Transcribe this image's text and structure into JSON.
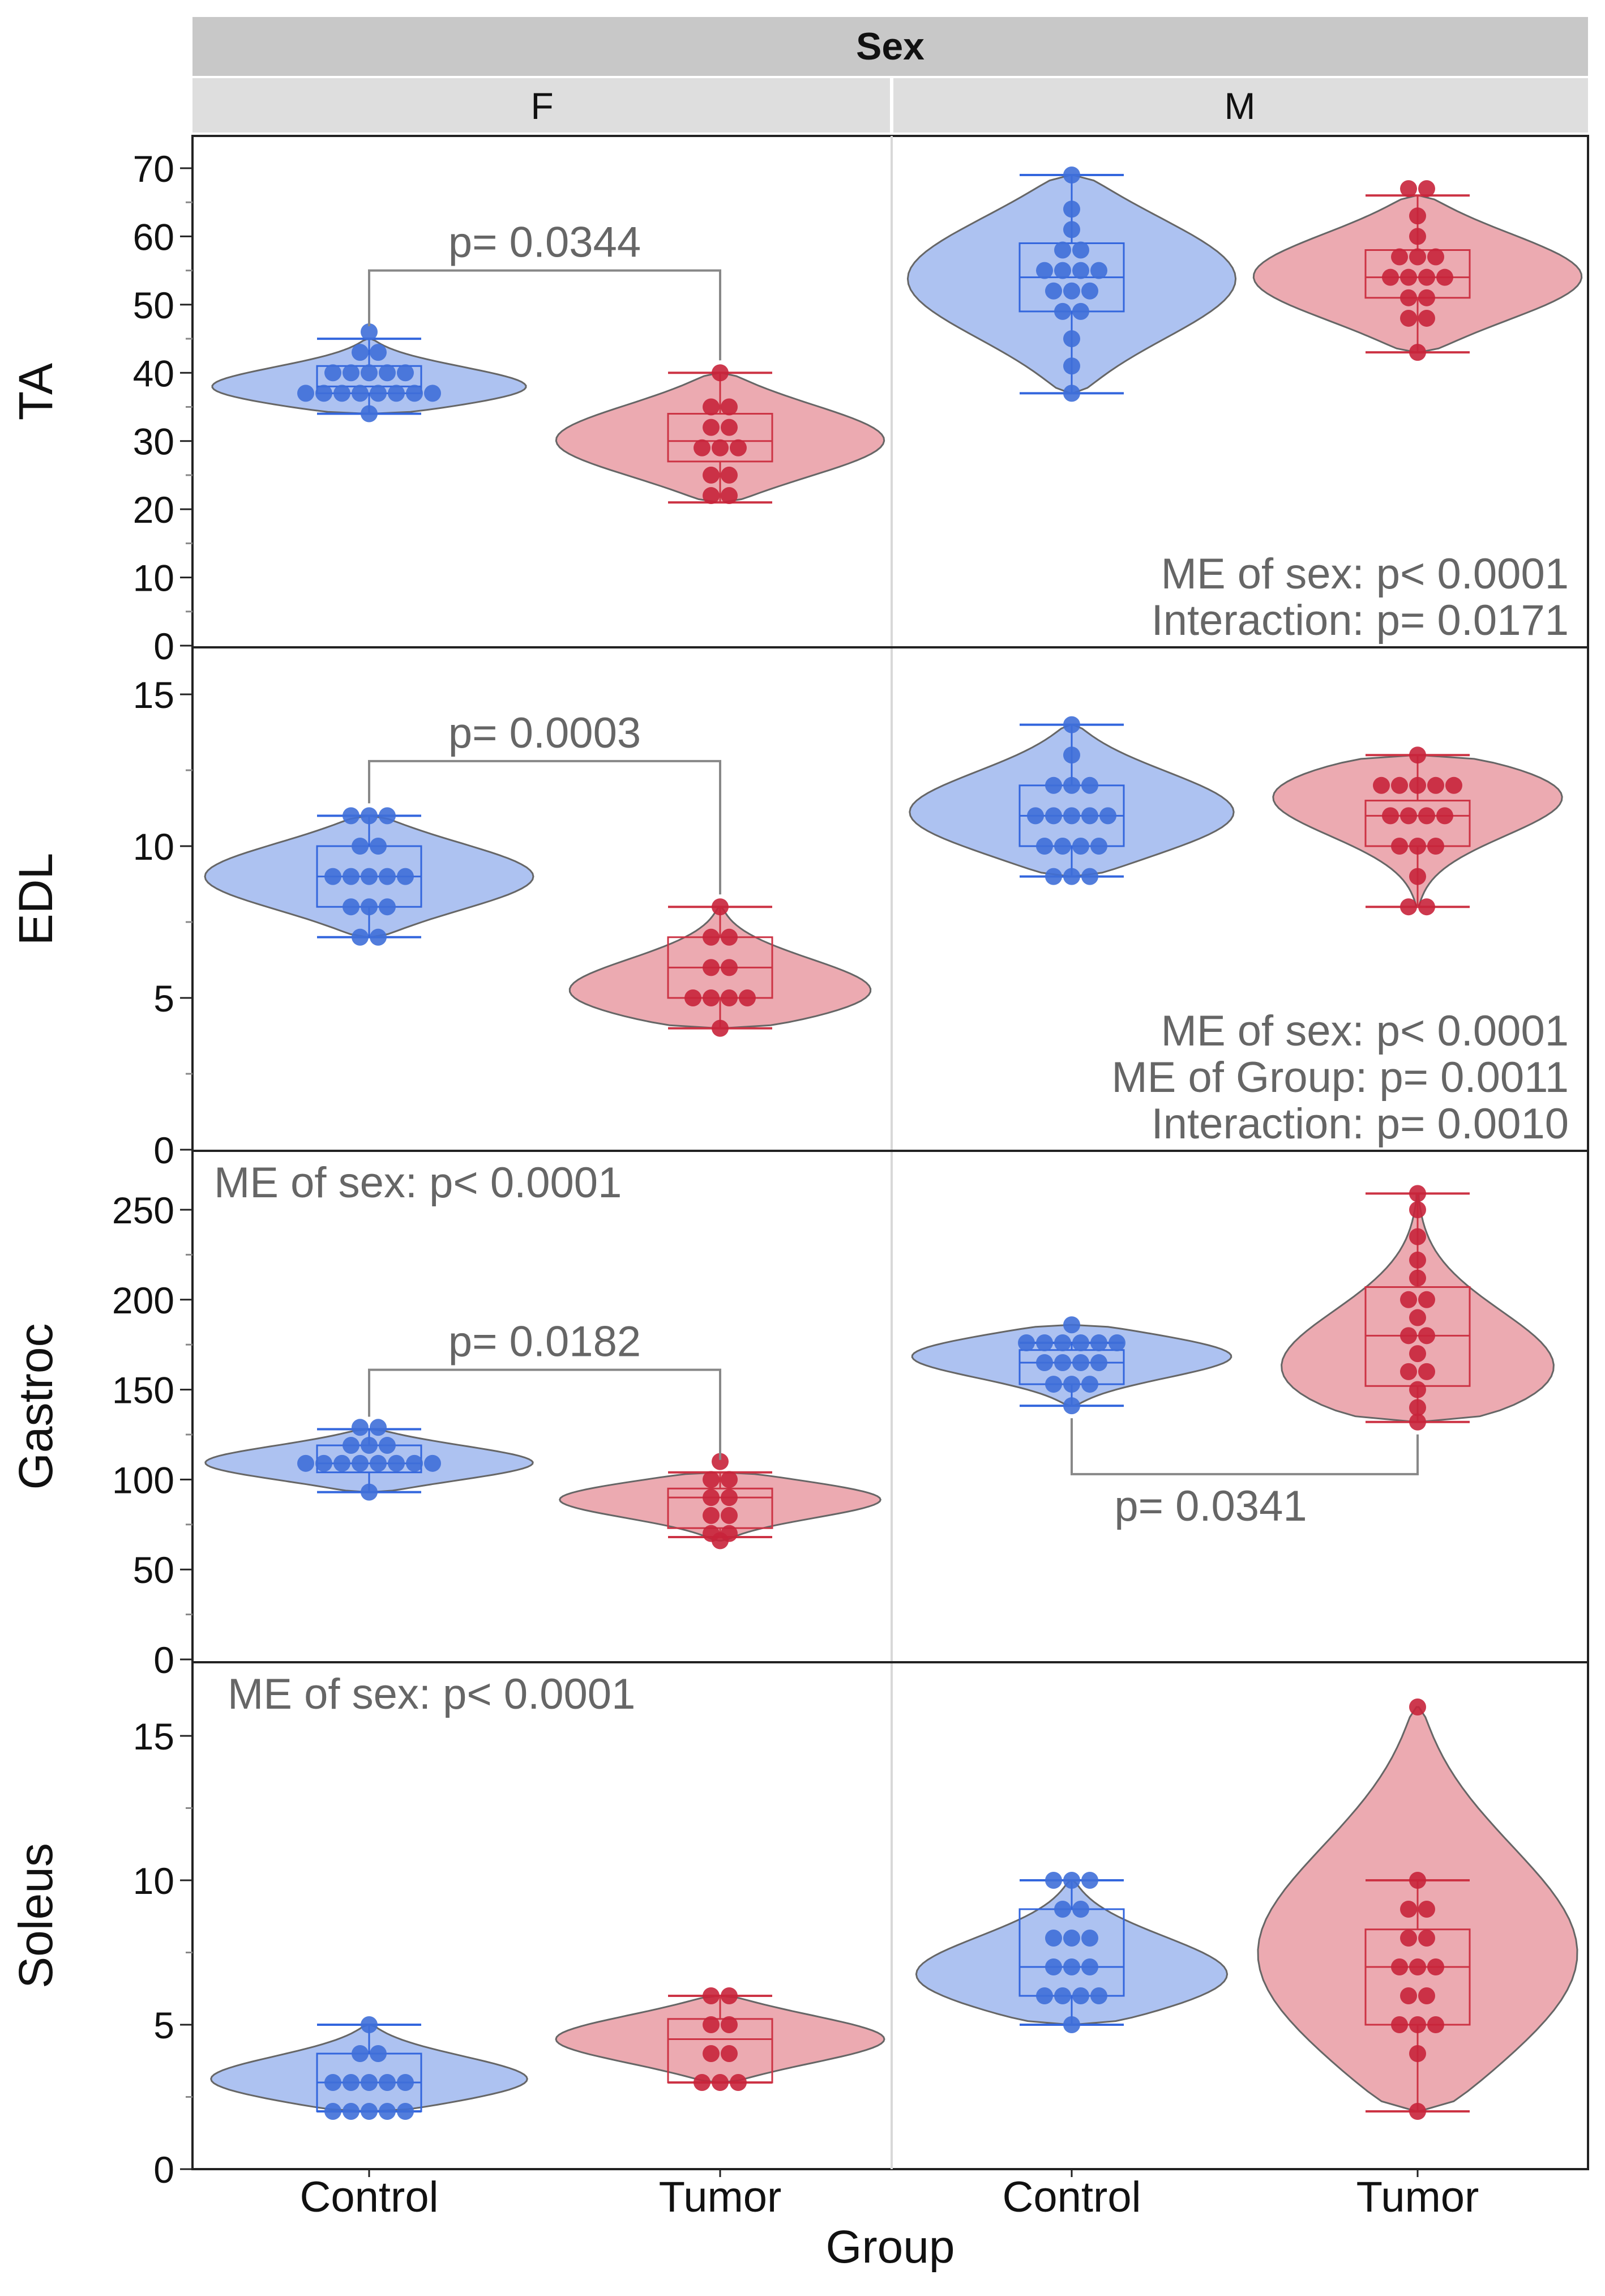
{
  "facet": {
    "title": "Sex",
    "columns": [
      "F",
      "M"
    ]
  },
  "xlabel": "Group",
  "groups": [
    "Control",
    "Tumor"
  ],
  "colors": {
    "Control": {
      "fill": "#a9bff0",
      "point": "#3f6fd8",
      "line": "#3366dd"
    },
    "Tumor": {
      "fill": "#eba5ad",
      "point": "#c8243b",
      "line": "#cc3344"
    },
    "header_dark": "#c8c8c8",
    "header_light": "#dedede",
    "annotation": "#666666"
  },
  "chart_data": [
    {
      "type": "violin",
      "ylabel": "TA",
      "ylim": [
        0,
        70
      ],
      "yticks": [
        0,
        10,
        20,
        30,
        40,
        50,
        60,
        70
      ],
      "grid": false,
      "panels": {
        "F": {
          "Control": {
            "box": {
              "min": 34,
              "q1": 37,
              "median": 38,
              "q3": 41,
              "max": 45
            },
            "points": [
              46,
              43,
              43,
              40,
              40,
              40,
              40,
              40,
              37,
              37,
              37,
              37,
              37,
              37,
              37,
              37,
              34
            ],
            "violin": {
              "ymin": 34,
              "ymax": 45,
              "widest_at": 37.5
            }
          },
          "Tumor": {
            "box": {
              "min": 21,
              "q1": 27,
              "median": 30,
              "q3": 34,
              "max": 40
            },
            "points": [
              40,
              35,
              35,
              32,
              32,
              29,
              29,
              29,
              25,
              25,
              22,
              22
            ],
            "violin": {
              "ymin": 21,
              "ymax": 40,
              "widest_at": 30
            }
          }
        },
        "M": {
          "Control": {
            "box": {
              "min": 37,
              "q1": 49,
              "median": 54,
              "q3": 59,
              "max": 69
            },
            "points": [
              69,
              64,
              61,
              58,
              58,
              55,
              55,
              55,
              55,
              52,
              52,
              52,
              49,
              49,
              45,
              41,
              37
            ],
            "violin": {
              "ymin": 37,
              "ymax": 69,
              "widest_at": 54
            }
          },
          "Tumor": {
            "box": {
              "min": 43,
              "q1": 51,
              "median": 54,
              "q3": 58,
              "max": 66
            },
            "points": [
              67,
              67,
              63,
              60,
              57,
              57,
              57,
              54,
              54,
              54,
              54,
              51,
              51,
              48,
              48,
              43
            ],
            "violin": {
              "ymin": 43,
              "ymax": 66,
              "widest_at": 54
            }
          }
        }
      },
      "annotations": [
        {
          "facet": "F",
          "text": "p= 0.0344",
          "type": "bracket",
          "from": "Control",
          "to": "Tumor",
          "y": 55
        },
        {
          "facet": "M",
          "text": "ME of sex: p< 0.0001",
          "type": "note",
          "placement": "bottom-right"
        },
        {
          "facet": "M",
          "text": "Interaction: p= 0.0171",
          "type": "note",
          "placement": "bottom-right"
        }
      ]
    },
    {
      "type": "violin",
      "ylabel": "EDL",
      "ylim": [
        0,
        15
      ],
      "yticks": [
        0,
        5,
        10,
        15
      ],
      "grid": false,
      "panels": {
        "F": {
          "Control": {
            "box": {
              "min": 7,
              "q1": 8,
              "median": 9,
              "q3": 10,
              "max": 11
            },
            "points": [
              11,
              11,
              11,
              10,
              10,
              9,
              9,
              9,
              9,
              9,
              8,
              8,
              8,
              7,
              7
            ],
            "violin": {
              "ymin": 7,
              "ymax": 11,
              "widest_at": 9
            }
          },
          "Tumor": {
            "box": {
              "min": 4,
              "q1": 5,
              "median": 6,
              "q3": 7,
              "max": 8
            },
            "points": [
              8,
              7,
              7,
              6,
              6,
              5,
              5,
              5,
              5,
              4
            ],
            "violin": {
              "ymin": 4,
              "ymax": 8,
              "widest_at": 5
            }
          }
        },
        "M": {
          "Control": {
            "box": {
              "min": 9,
              "q1": 10,
              "median": 11,
              "q3": 12,
              "max": 14
            },
            "points": [
              14,
              13,
              12,
              12,
              12,
              11,
              11,
              11,
              11,
              11,
              10,
              10,
              10,
              10,
              9,
              9,
              9
            ],
            "violin": {
              "ymin": 9,
              "ymax": 14,
              "widest_at": 11
            }
          },
          "Tumor": {
            "box": {
              "min": 8,
              "q1": 10,
              "median": 11,
              "q3": 11.5,
              "max": 13
            },
            "points": [
              13,
              12,
              12,
              12,
              12,
              12,
              11,
              11,
              11,
              11,
              10,
              10,
              10,
              9,
              8,
              8
            ],
            "violin": {
              "ymin": 8,
              "ymax": 13,
              "widest_at": 12
            }
          }
        }
      },
      "annotations": [
        {
          "facet": "F",
          "text": "p= 0.0003",
          "type": "bracket",
          "from": "Control",
          "to": "Tumor",
          "y": 12.8
        },
        {
          "facet": "M",
          "text": "ME of sex: p< 0.0001",
          "type": "note",
          "placement": "bottom-right"
        },
        {
          "facet": "M",
          "text": "ME of Group: p= 0.0011",
          "type": "note",
          "placement": "bottom-right"
        },
        {
          "facet": "M",
          "text": "Interaction: p= 0.0010",
          "type": "note",
          "placement": "bottom-right"
        }
      ]
    },
    {
      "type": "violin",
      "ylabel": "Gastroc",
      "ylim": [
        0,
        250
      ],
      "yticks": [
        0,
        50,
        100,
        150,
        200,
        250
      ],
      "grid": false,
      "panels": {
        "F": {
          "Control": {
            "box": {
              "min": 93,
              "q1": 104,
              "median": 109,
              "q3": 119,
              "max": 128
            },
            "points": [
              129,
              129,
              119,
              119,
              119,
              109,
              109,
              109,
              109,
              109,
              109,
              109,
              109,
              93
            ],
            "violin": {
              "ymin": 93,
              "ymax": 128,
              "widest_at": 109
            }
          },
          "Tumor": {
            "box": {
              "min": 68,
              "q1": 73,
              "median": 90,
              "q3": 95,
              "max": 104
            },
            "points": [
              110,
              100,
              100,
              90,
              90,
              80,
              80,
              70,
              70,
              66
            ],
            "violin": {
              "ymin": 66,
              "ymax": 104,
              "widest_at": 90
            }
          }
        },
        "M": {
          "Control": {
            "box": {
              "min": 141,
              "q1": 153,
              "median": 165,
              "q3": 172,
              "max": 176
            },
            "points": [
              186,
              176,
              176,
              176,
              176,
              176,
              176,
              165,
              165,
              165,
              165,
              153,
              153,
              153,
              141
            ],
            "violin": {
              "ymin": 141,
              "ymax": 186,
              "widest_at": 170
            }
          },
          "Tumor": {
            "box": {
              "min": 132,
              "q1": 152,
              "median": 180,
              "q3": 207,
              "max": 259
            },
            "points": [
              259,
              250,
              235,
              222,
              212,
              200,
              200,
              190,
              180,
              180,
              170,
              160,
              160,
              150,
              140,
              132
            ],
            "violin": {
              "ymin": 132,
              "ymax": 259,
              "widest_at": 150
            }
          }
        }
      },
      "annotations": [
        {
          "facet": "F",
          "text": "ME of sex: p< 0.0001",
          "type": "note",
          "placement": "top-left"
        },
        {
          "facet": "F",
          "text": "p= 0.0182",
          "type": "bracket",
          "from": "Control",
          "to": "Tumor",
          "y": 161
        },
        {
          "facet": "M",
          "text": "p= 0.0341",
          "type": "bracket-below",
          "from": "Control",
          "to": "Tumor",
          "y": 103
        }
      ]
    },
    {
      "type": "violin",
      "ylabel": "Soleus",
      "ylim": [
        0,
        15
      ],
      "yticks": [
        0,
        5,
        10,
        15
      ],
      "grid": false,
      "panels": {
        "F": {
          "Control": {
            "box": {
              "min": 2,
              "q1": 2,
              "median": 3,
              "q3": 4,
              "max": 5
            },
            "points": [
              5,
              4,
              4,
              3,
              3,
              3,
              3,
              3,
              2,
              2,
              2,
              2,
              2
            ],
            "violin": {
              "ymin": 2,
              "ymax": 5,
              "widest_at": 3
            }
          },
          "Tumor": {
            "box": {
              "min": 3,
              "q1": 3,
              "median": 4.5,
              "q3": 5.2,
              "max": 6
            },
            "points": [
              6,
              6,
              5,
              5,
              4,
              4,
              3,
              3,
              3
            ],
            "violin": {
              "ymin": 3,
              "ymax": 6,
              "widest_at": 4.5
            }
          }
        },
        "M": {
          "Control": {
            "box": {
              "min": 5,
              "q1": 6,
              "median": 7,
              "q3": 9,
              "max": 10
            },
            "points": [
              10,
              10,
              10,
              9,
              9,
              8,
              8,
              8,
              7,
              7,
              7,
              6,
              6,
              6,
              6,
              5
            ],
            "violin": {
              "ymin": 5,
              "ymax": 10,
              "widest_at": 6.5
            }
          },
          "Tumor": {
            "box": {
              "min": 2,
              "q1": 5,
              "median": 7,
              "q3": 8.3,
              "max": 10
            },
            "points": [
              16,
              10,
              9,
              9,
              8,
              8,
              7,
              7,
              7,
              6,
              6,
              5,
              5,
              5,
              4,
              2
            ],
            "violin": {
              "ymin": 2,
              "ymax": 16,
              "widest_at": 7
            }
          }
        }
      },
      "annotations": [
        {
          "facet": "F",
          "text": "ME of sex: p< 0.0001",
          "type": "note",
          "placement": "top-left"
        }
      ]
    }
  ]
}
